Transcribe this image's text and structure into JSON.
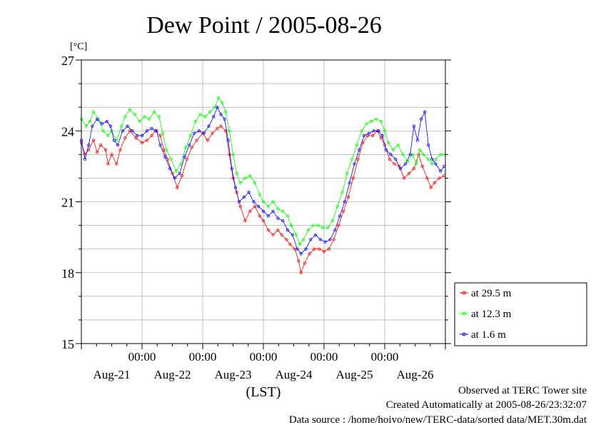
{
  "chart_data": {
    "type": "line",
    "title": "Dew Point / 2005-08-26",
    "ylabel": "[°C]",
    "xlabel": "(LST)",
    "ylim": [
      15,
      27
    ],
    "yticks": [
      15,
      18,
      21,
      24,
      27
    ],
    "xlim": [
      0,
      6
    ],
    "x_tick_times": [
      "00:00",
      "00:00",
      "00:00",
      "00:00",
      "00:00"
    ],
    "x_tick_positions_days": [
      1,
      2,
      3,
      4,
      5
    ],
    "x_date_labels": [
      "Aug-21",
      "Aug-22",
      "Aug-23",
      "Aug-24",
      "Aug-25",
      "Aug-26"
    ],
    "grid": true,
    "legend_position": "right",
    "series": [
      {
        "name": "at 29.5 m",
        "color": "#ff0000",
        "points": [
          [
            0.0,
            23.5
          ],
          [
            0.06,
            23.0
          ],
          [
            0.12,
            23.2
          ],
          [
            0.2,
            23.6
          ],
          [
            0.26,
            23.1
          ],
          [
            0.32,
            23.4
          ],
          [
            0.4,
            23.2
          ],
          [
            0.44,
            22.6
          ],
          [
            0.5,
            23.0
          ],
          [
            0.58,
            22.6
          ],
          [
            0.64,
            23.2
          ],
          [
            0.72,
            23.7
          ],
          [
            0.8,
            24.0
          ],
          [
            0.9,
            23.7
          ],
          [
            1.0,
            23.5
          ],
          [
            1.08,
            23.6
          ],
          [
            1.16,
            23.8
          ],
          [
            1.22,
            24.0
          ],
          [
            1.3,
            23.8
          ],
          [
            1.36,
            23.2
          ],
          [
            1.42,
            22.8
          ],
          [
            1.5,
            22.2
          ],
          [
            1.58,
            21.6
          ],
          [
            1.66,
            22.1
          ],
          [
            1.74,
            22.8
          ],
          [
            1.82,
            23.3
          ],
          [
            1.9,
            23.6
          ],
          [
            2.0,
            23.9
          ],
          [
            2.08,
            23.6
          ],
          [
            2.16,
            23.9
          ],
          [
            2.24,
            24.1
          ],
          [
            2.3,
            24.2
          ],
          [
            2.38,
            24.0
          ],
          [
            2.44,
            23.0
          ],
          [
            2.5,
            22.0
          ],
          [
            2.56,
            21.4
          ],
          [
            2.62,
            20.8
          ],
          [
            2.7,
            20.2
          ],
          [
            2.78,
            20.6
          ],
          [
            2.86,
            20.8
          ],
          [
            2.94,
            20.4
          ],
          [
            3.0,
            20.2
          ],
          [
            3.08,
            19.8
          ],
          [
            3.16,
            19.6
          ],
          [
            3.24,
            19.8
          ],
          [
            3.3,
            19.6
          ],
          [
            3.38,
            19.4
          ],
          [
            3.44,
            19.2
          ],
          [
            3.52,
            19.0
          ],
          [
            3.58,
            18.5
          ],
          [
            3.62,
            18.0
          ],
          [
            3.68,
            18.4
          ],
          [
            3.76,
            18.8
          ],
          [
            3.84,
            19.0
          ],
          [
            3.92,
            19.0
          ],
          [
            4.0,
            18.9
          ],
          [
            4.08,
            19.0
          ],
          [
            4.16,
            19.4
          ],
          [
            4.24,
            20.0
          ],
          [
            4.32,
            20.6
          ],
          [
            4.4,
            21.2
          ],
          [
            4.48,
            22.0
          ],
          [
            4.56,
            22.8
          ],
          [
            4.64,
            23.5
          ],
          [
            4.72,
            23.8
          ],
          [
            4.8,
            23.8
          ],
          [
            4.88,
            24.0
          ],
          [
            4.94,
            23.7
          ],
          [
            5.0,
            23.4
          ],
          [
            5.08,
            22.8
          ],
          [
            5.16,
            22.6
          ],
          [
            5.24,
            22.5
          ],
          [
            5.32,
            22.0
          ],
          [
            5.4,
            22.2
          ],
          [
            5.48,
            22.4
          ],
          [
            5.56,
            23.0
          ],
          [
            5.62,
            22.5
          ],
          [
            5.7,
            22.0
          ],
          [
            5.76,
            21.6
          ],
          [
            5.82,
            21.8
          ],
          [
            5.9,
            22.0
          ],
          [
            5.98,
            22.1
          ]
        ]
      },
      {
        "name": "at 12.3 m",
        "color": "#00ff00",
        "points": [
          [
            0.0,
            24.5
          ],
          [
            0.08,
            24.2
          ],
          [
            0.14,
            24.4
          ],
          [
            0.2,
            24.8
          ],
          [
            0.28,
            24.5
          ],
          [
            0.36,
            24.0
          ],
          [
            0.44,
            23.8
          ],
          [
            0.5,
            24.0
          ],
          [
            0.58,
            23.6
          ],
          [
            0.66,
            24.2
          ],
          [
            0.72,
            24.6
          ],
          [
            0.8,
            24.9
          ],
          [
            0.88,
            24.7
          ],
          [
            0.96,
            24.4
          ],
          [
            1.04,
            24.6
          ],
          [
            1.12,
            24.5
          ],
          [
            1.2,
            24.8
          ],
          [
            1.28,
            24.6
          ],
          [
            1.34,
            23.9
          ],
          [
            1.4,
            23.2
          ],
          [
            1.48,
            22.8
          ],
          [
            1.56,
            22.3
          ],
          [
            1.64,
            22.6
          ],
          [
            1.72,
            23.3
          ],
          [
            1.8,
            23.8
          ],
          [
            1.88,
            24.4
          ],
          [
            1.96,
            24.7
          ],
          [
            2.04,
            24.6
          ],
          [
            2.12,
            24.8
          ],
          [
            2.2,
            25.0
          ],
          [
            2.26,
            25.4
          ],
          [
            2.32,
            25.2
          ],
          [
            2.38,
            24.8
          ],
          [
            2.44,
            24.0
          ],
          [
            2.5,
            23.0
          ],
          [
            2.56,
            22.2
          ],
          [
            2.62,
            21.8
          ],
          [
            2.7,
            22.0
          ],
          [
            2.78,
            22.1
          ],
          [
            2.86,
            21.8
          ],
          [
            2.94,
            21.3
          ],
          [
            3.0,
            21.0
          ],
          [
            3.08,
            20.8
          ],
          [
            3.16,
            21.0
          ],
          [
            3.24,
            20.7
          ],
          [
            3.32,
            20.6
          ],
          [
            3.4,
            20.4
          ],
          [
            3.46,
            20.0
          ],
          [
            3.54,
            19.6
          ],
          [
            3.6,
            19.2
          ],
          [
            3.66,
            19.4
          ],
          [
            3.74,
            19.8
          ],
          [
            3.82,
            20.0
          ],
          [
            3.9,
            20.0
          ],
          [
            3.98,
            19.9
          ],
          [
            4.06,
            19.9
          ],
          [
            4.14,
            20.2
          ],
          [
            4.22,
            20.8
          ],
          [
            4.3,
            21.4
          ],
          [
            4.38,
            22.2
          ],
          [
            4.46,
            22.8
          ],
          [
            4.54,
            23.4
          ],
          [
            4.62,
            24.0
          ],
          [
            4.7,
            24.3
          ],
          [
            4.78,
            24.4
          ],
          [
            4.86,
            24.5
          ],
          [
            4.94,
            24.4
          ],
          [
            5.0,
            24.0
          ],
          [
            5.06,
            23.5
          ],
          [
            5.14,
            23.2
          ],
          [
            5.22,
            23.4
          ],
          [
            5.3,
            23.0
          ],
          [
            5.38,
            22.7
          ],
          [
            5.46,
            23.0
          ],
          [
            5.52,
            22.6
          ],
          [
            5.58,
            23.2
          ],
          [
            5.64,
            23.0
          ],
          [
            5.72,
            22.8
          ],
          [
            5.78,
            22.6
          ],
          [
            5.84,
            22.8
          ],
          [
            5.92,
            23.0
          ],
          [
            5.98,
            23.0
          ]
        ]
      },
      {
        "name": "at 1.6 m",
        "color": "#0000ff",
        "points": [
          [
            0.0,
            23.6
          ],
          [
            0.06,
            22.8
          ],
          [
            0.12,
            23.4
          ],
          [
            0.18,
            24.2
          ],
          [
            0.26,
            24.5
          ],
          [
            0.34,
            24.3
          ],
          [
            0.42,
            24.4
          ],
          [
            0.48,
            24.2
          ],
          [
            0.54,
            23.6
          ],
          [
            0.6,
            23.4
          ],
          [
            0.68,
            24.0
          ],
          [
            0.76,
            24.2
          ],
          [
            0.84,
            24.0
          ],
          [
            0.92,
            23.8
          ],
          [
            1.0,
            23.8
          ],
          [
            1.08,
            24.0
          ],
          [
            1.16,
            24.1
          ],
          [
            1.24,
            24.0
          ],
          [
            1.3,
            23.4
          ],
          [
            1.38,
            22.9
          ],
          [
            1.46,
            22.4
          ],
          [
            1.54,
            22.0
          ],
          [
            1.62,
            22.2
          ],
          [
            1.7,
            22.9
          ],
          [
            1.78,
            23.4
          ],
          [
            1.86,
            23.9
          ],
          [
            1.94,
            24.0
          ],
          [
            2.02,
            23.9
          ],
          [
            2.1,
            24.2
          ],
          [
            2.18,
            24.6
          ],
          [
            2.24,
            25.0
          ],
          [
            2.3,
            24.7
          ],
          [
            2.36,
            24.5
          ],
          [
            2.42,
            23.6
          ],
          [
            2.48,
            22.4
          ],
          [
            2.54,
            21.6
          ],
          [
            2.6,
            21.0
          ],
          [
            2.68,
            21.2
          ],
          [
            2.76,
            21.4
          ],
          [
            2.84,
            21.0
          ],
          [
            2.92,
            20.8
          ],
          [
            3.0,
            20.6
          ],
          [
            3.08,
            20.4
          ],
          [
            3.16,
            20.6
          ],
          [
            3.24,
            20.3
          ],
          [
            3.32,
            20.2
          ],
          [
            3.4,
            19.8
          ],
          [
            3.48,
            19.6
          ],
          [
            3.56,
            19.0
          ],
          [
            3.62,
            18.8
          ],
          [
            3.7,
            19.0
          ],
          [
            3.78,
            19.4
          ],
          [
            3.86,
            19.6
          ],
          [
            3.94,
            19.4
          ],
          [
            4.02,
            19.3
          ],
          [
            4.1,
            19.4
          ],
          [
            4.18,
            19.8
          ],
          [
            4.26,
            20.4
          ],
          [
            4.34,
            21.0
          ],
          [
            4.42,
            21.8
          ],
          [
            4.5,
            22.6
          ],
          [
            4.58,
            23.2
          ],
          [
            4.66,
            23.8
          ],
          [
            4.74,
            23.9
          ],
          [
            4.82,
            24.0
          ],
          [
            4.9,
            24.0
          ],
          [
            4.96,
            23.8
          ],
          [
            5.02,
            23.2
          ],
          [
            5.1,
            23.0
          ],
          [
            5.18,
            22.8
          ],
          [
            5.26,
            22.4
          ],
          [
            5.34,
            22.6
          ],
          [
            5.42,
            23.0
          ],
          [
            5.48,
            24.2
          ],
          [
            5.54,
            23.6
          ],
          [
            5.6,
            24.5
          ],
          [
            5.66,
            24.8
          ],
          [
            5.72,
            23.4
          ],
          [
            5.78,
            22.8
          ],
          [
            5.84,
            22.6
          ],
          [
            5.92,
            22.3
          ],
          [
            5.98,
            22.5
          ]
        ]
      }
    ]
  },
  "footer": {
    "line1": "Observed at TERC Tower site",
    "line2": "Created Automatically at 2005-08-26/23:32:07",
    "line3": "Data source : /home/hoivo/new/TERC-data/sorted  data/MET.30m.dat"
  }
}
